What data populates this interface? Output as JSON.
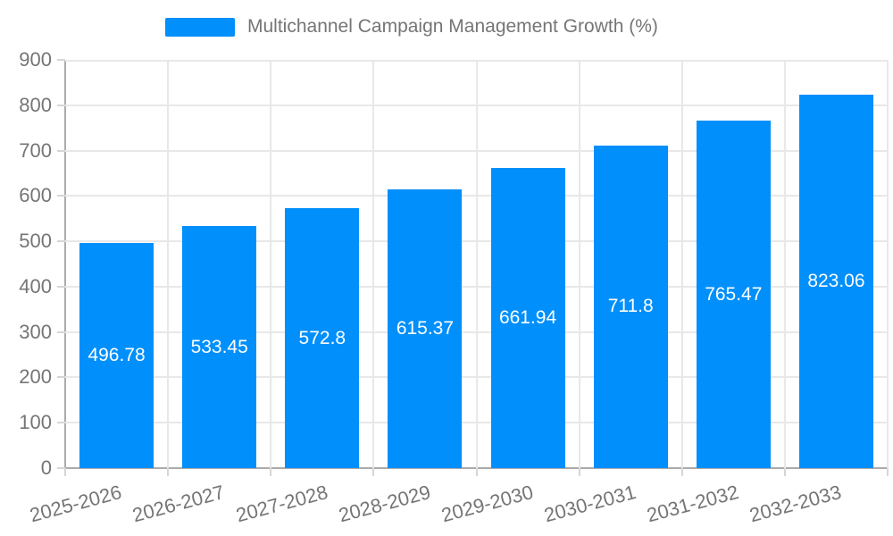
{
  "legend": {
    "label": "Multichannel Campaign Management Growth (%)"
  },
  "chart_data": {
    "type": "bar",
    "title": "Multichannel Campaign Management Growth (%)",
    "categories": [
      "2025-2026",
      "2026-2027",
      "2027-2028",
      "2028-2029",
      "2029-2030",
      "2030-2031",
      "2031-2032",
      "2032-2033"
    ],
    "series": [
      {
        "name": "Multichannel Campaign Management Growth (%)",
        "values": [
          496.78,
          533.45,
          572.8,
          615.37,
          661.94,
          711.8,
          765.47,
          823.06
        ]
      }
    ],
    "value_labels": [
      "496.78",
      "533.45",
      "572.8",
      "615.37",
      "661.94",
      "711.8",
      "765.47",
      "823.06"
    ],
    "xlabel": "",
    "ylabel": "",
    "ylim": [
      0,
      900
    ],
    "yticks": [
      0,
      100,
      200,
      300,
      400,
      500,
      600,
      700,
      800,
      900
    ],
    "grid": true,
    "legend_position": "top",
    "x_label_rotation_deg": -15,
    "colors": {
      "bar": "#008FFB",
      "value_label": "#ffffff",
      "axis_text": "#757575",
      "title_text": "#757575",
      "gridline": "#e8e8e8",
      "axis_line": "#ababab",
      "tick": "#d6d6d6",
      "background": "#ffffff"
    }
  }
}
